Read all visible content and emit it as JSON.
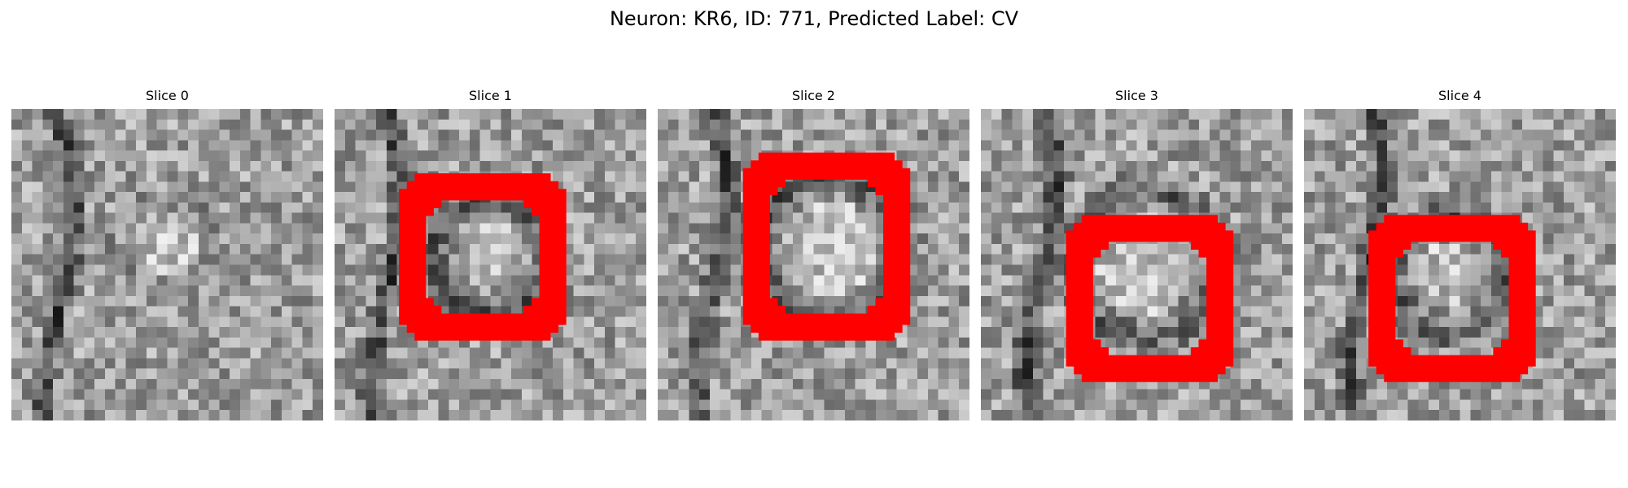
{
  "figure": {
    "title": "Neuron: KR6, ID: 771, Predicted Label: CV"
  },
  "colors": {
    "outline": "#ff0000",
    "background": "#ffffff"
  },
  "colormap": "gray",
  "panels": [
    {
      "title": "Slice 0",
      "has_outline": false
    },
    {
      "title": "Slice 1",
      "has_outline": true
    },
    {
      "title": "Slice 2",
      "has_outline": true
    },
    {
      "title": "Slice 3",
      "has_outline": true
    },
    {
      "title": "Slice 4",
      "has_outline": true
    }
  ]
}
